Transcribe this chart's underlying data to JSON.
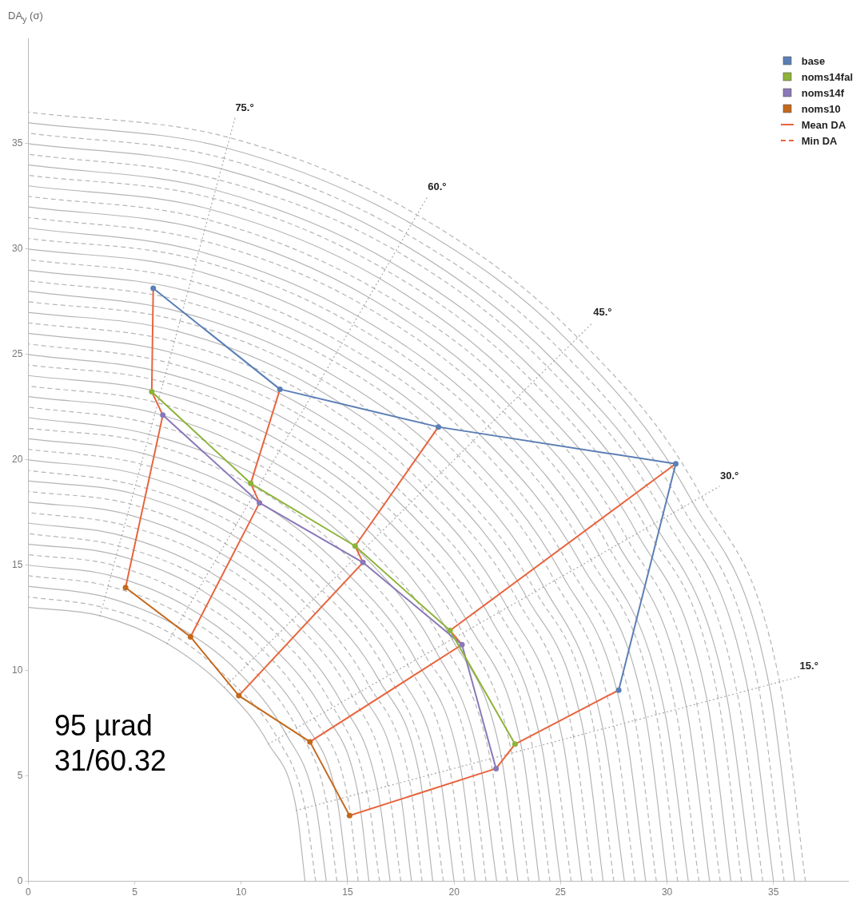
{
  "chart_data": {
    "type": "line",
    "ylabel": "DA$_{y}$ (σ)",
    "xlim": [
      0,
      38.5
    ],
    "ylim": [
      0,
      40
    ],
    "xticks": [
      0,
      5,
      10,
      15,
      20,
      25,
      30,
      35
    ],
    "yticks": [
      0,
      5,
      10,
      15,
      20,
      25,
      30,
      35
    ],
    "grid": false,
    "legend": "top right",
    "marker": "circle",
    "series": [
      {
        "name": "base",
        "color": "#5b7fb5",
        "x": [
          5.87,
          11.82,
          19.26,
          30.41,
          27.73
        ],
        "values": [
          28.14,
          23.35,
          21.56,
          19.81,
          9.07
        ]
      },
      {
        "name": "noms14fal",
        "color": "#8db33a",
        "x": [
          5.8,
          10.45,
          15.35,
          19.81,
          22.86
        ],
        "values": [
          23.23,
          18.88,
          15.91,
          11.9,
          6.51
        ]
      },
      {
        "name": "noms14f",
        "color": "#8a78b8",
        "x": [
          6.32,
          10.86,
          15.72,
          20.37,
          21.97
        ],
        "values": [
          22.12,
          17.96,
          15.13,
          11.23,
          5.35
        ]
      },
      {
        "name": "noms10",
        "color": "#c4691c",
        "x": [
          4.57,
          7.62,
          9.89,
          13.23,
          15.09
        ],
        "values": [
          13.94,
          11.6,
          8.81,
          6.62,
          3.12
        ]
      },
      {
        "name": "Mean DA",
        "color": "#e8643c",
        "marker": "none",
        "x": [
          5.87,
          5.8,
          6.32,
          4.57
        ],
        "values": [
          28.14,
          23.23,
          22.12,
          13.94
        ]
      },
      {
        "color": "#e8643c",
        "marker": "none",
        "x": [
          11.82,
          10.45,
          10.86,
          7.62
        ],
        "values": [
          23.35,
          18.88,
          17.96,
          11.6
        ]
      },
      {
        "color": "#e8643c",
        "marker": "none",
        "x": [
          19.26,
          15.35,
          15.72,
          9.89
        ],
        "values": [
          21.56,
          15.91,
          15.13,
          8.81
        ]
      },
      {
        "color": "#e8643c",
        "marker": "none",
        "x": [
          30.41,
          19.81,
          20.37,
          13.23
        ],
        "values": [
          19.81,
          11.9,
          11.23,
          6.62
        ]
      },
      {
        "color": "#e8643c",
        "marker": "none",
        "x": [
          27.73,
          22.86,
          21.97,
          15.09
        ],
        "values": [
          9.07,
          6.51,
          5.35,
          3.12
        ]
      },
      {
        "name": "Min DA",
        "color": "#e8643c",
        "marker": "none",
        "line_style": "dashed"
      },
      {
        "color": "#a8a8a8",
        "marker": "none",
        "line_style": "dotted",
        "x": [
          12.56,
          36.22
        ],
        "values": [
          3.36,
          9.71
        ]
      },
      {
        "color": "#a8a8a8",
        "marker": "none",
        "line_style": "dotted",
        "x": [
          11.26,
          32.48
        ],
        "values": [
          6.5,
          18.75
        ]
      },
      {
        "color": "#a8a8a8",
        "marker": "none",
        "line_style": "dotted",
        "x": [
          9.19,
          26.52
        ],
        "values": [
          9.19,
          26.52
        ]
      },
      {
        "color": "#a8a8a8",
        "marker": "none",
        "line_style": "dotted",
        "x": [
          6.5,
          18.75
        ],
        "values": [
          11.26,
          32.48
        ]
      },
      {
        "color": "#a8a8a8",
        "marker": "none",
        "line_style": "dotted",
        "x": [
          3.36,
          9.71
        ],
        "values": [
          12.56,
          36.22
        ]
      },
      {
        "color": "#b5b5b5",
        "marker": "none",
        "line_style": "solid",
        "x": [
          13,
          12.6,
          11.3,
          9.2,
          6.5,
          3.4,
          0
        ],
        "values": [
          0,
          3.4,
          6.5,
          9.2,
          11.3,
          12.6,
          13
        ]
      },
      {
        "color": "#b5b5b5",
        "marker": "none",
        "line_style": "dashed",
        "x": [
          13.5,
          13.0,
          11.7,
          9.5,
          6.8,
          3.5,
          0
        ],
        "values": [
          0,
          3.5,
          6.8,
          9.5,
          11.7,
          13.0,
          13.5
        ]
      },
      {
        "color": "#b5b5b5",
        "marker": "none",
        "line_style": "solid",
        "x": [
          14,
          13.5,
          12.1,
          9.9,
          7,
          3.6,
          0
        ],
        "values": [
          0,
          3.6,
          7,
          9.9,
          12.1,
          13.5,
          14
        ]
      },
      {
        "color": "#b5b5b5",
        "marker": "none",
        "line_style": "dashed",
        "x": [
          14.5,
          14.0,
          12.6,
          10.3,
          7.3,
          3.8,
          0
        ],
        "values": [
          0,
          3.8,
          7.3,
          10.3,
          12.6,
          14.0,
          14.5
        ]
      },
      {
        "color": "#b5b5b5",
        "marker": "none",
        "line_style": "solid",
        "x": [
          15,
          14.5,
          13.0,
          10.6,
          7.5,
          3.9,
          0
        ],
        "values": [
          0,
          3.9,
          7.5,
          10.6,
          13.0,
          14.5,
          15
        ]
      },
      {
        "color": "#b5b5b5",
        "marker": "none",
        "line_style": "dashed",
        "x": [
          15.5,
          15.0,
          13.4,
          11.0,
          7.8,
          4.0,
          0
        ],
        "values": [
          0,
          4.0,
          7.8,
          11.0,
          13.4,
          15.0,
          15.5
        ]
      },
      {
        "color": "#b5b5b5",
        "marker": "none",
        "line_style": "solid",
        "x": [
          16,
          15.5,
          13.9,
          11.3,
          8,
          4.1,
          0
        ],
        "values": [
          0,
          4.1,
          8,
          11.3,
          13.9,
          15.5,
          16
        ]
      },
      {
        "color": "#b5b5b5",
        "marker": "none",
        "line_style": "dashed",
        "x": [
          16.5,
          15.9,
          14.3,
          11.7,
          8.3,
          4.3,
          0
        ],
        "values": [
          0,
          4.3,
          8.3,
          11.7,
          14.3,
          15.9,
          16.5
        ]
      },
      {
        "color": "#b5b5b5",
        "marker": "none",
        "line_style": "solid",
        "x": [
          17,
          16.4,
          14.7,
          12.0,
          8.5,
          4.4,
          0
        ],
        "values": [
          0,
          4.4,
          8.5,
          12.0,
          14.7,
          16.4,
          17
        ]
      },
      {
        "color": "#b5b5b5",
        "marker": "none",
        "line_style": "dashed",
        "x": [
          17.5,
          16.9,
          15.2,
          12.4,
          8.8,
          4.5,
          0
        ],
        "values": [
          0,
          4.5,
          8.8,
          12.4,
          15.2,
          16.9,
          17.5
        ]
      },
      {
        "color": "#b5b5b5",
        "marker": "none",
        "line_style": "solid",
        "x": [
          18,
          17.4,
          15.6,
          12.7,
          9,
          4.7,
          0
        ],
        "values": [
          0,
          4.7,
          9,
          12.7,
          15.6,
          17.4,
          18
        ]
      },
      {
        "color": "#b5b5b5",
        "marker": "none",
        "line_style": "dashed",
        "x": [
          18.5,
          17.9,
          16.0,
          13.1,
          9.3,
          4.8,
          0
        ],
        "values": [
          0,
          4.8,
          9.3,
          13.1,
          16.0,
          17.9,
          18.5
        ]
      },
      {
        "color": "#b5b5b5",
        "marker": "none",
        "line_style": "solid",
        "x": [
          19,
          18.4,
          16.5,
          13.4,
          9.5,
          4.9,
          0
        ],
        "values": [
          0,
          4.9,
          9.5,
          13.4,
          16.5,
          18.4,
          19
        ]
      },
      {
        "color": "#b5b5b5",
        "marker": "none",
        "line_style": "dashed",
        "x": [
          19.5,
          18.8,
          16.9,
          13.8,
          9.8,
          5.0,
          0
        ],
        "values": [
          0,
          5.0,
          9.8,
          13.8,
          16.9,
          18.8,
          19.5
        ]
      },
      {
        "color": "#b5b5b5",
        "marker": "none",
        "line_style": "solid",
        "x": [
          20,
          19.3,
          17.3,
          14.1,
          10,
          5.2,
          0
        ],
        "values": [
          0,
          5.2,
          10,
          14.1,
          17.3,
          19.3,
          20
        ]
      },
      {
        "color": "#b5b5b5",
        "marker": "none",
        "line_style": "dashed",
        "x": [
          20.5,
          19.8,
          17.8,
          14.5,
          10.3,
          5.3,
          0
        ],
        "values": [
          0,
          5.3,
          10.3,
          14.5,
          17.8,
          19.8,
          20.5
        ]
      },
      {
        "color": "#b5b5b5",
        "marker": "none",
        "line_style": "solid",
        "x": [
          21,
          20.3,
          18.2,
          14.8,
          10.5,
          5.4,
          0
        ],
        "values": [
          0,
          5.4,
          10.5,
          14.8,
          18.2,
          20.3,
          21
        ]
      },
      {
        "color": "#b5b5b5",
        "marker": "none",
        "line_style": "dashed",
        "x": [
          21.5,
          20.8,
          18.6,
          15.2,
          10.8,
          5.6,
          0
        ],
        "values": [
          0,
          5.6,
          10.8,
          15.2,
          18.6,
          20.8,
          21.5
        ]
      },
      {
        "color": "#b5b5b5",
        "marker": "none",
        "line_style": "solid",
        "x": [
          22,
          21.2,
          19.1,
          15.6,
          11,
          5.7,
          0
        ],
        "values": [
          0,
          5.7,
          11,
          15.6,
          19.1,
          21.2,
          22
        ]
      },
      {
        "color": "#b5b5b5",
        "marker": "none",
        "line_style": "dashed",
        "x": [
          22.5,
          21.7,
          19.5,
          15.9,
          11.3,
          5.8,
          0
        ],
        "values": [
          0,
          5.8,
          11.3,
          15.9,
          19.5,
          21.7,
          22.5
        ]
      },
      {
        "color": "#b5b5b5",
        "marker": "none",
        "line_style": "solid",
        "x": [
          23,
          22.2,
          19.9,
          16.3,
          11.5,
          6.0,
          0
        ],
        "values": [
          0,
          6.0,
          11.5,
          16.3,
          19.9,
          22.2,
          23
        ]
      },
      {
        "color": "#b5b5b5",
        "marker": "none",
        "line_style": "dashed",
        "x": [
          23.5,
          22.7,
          20.4,
          16.6,
          11.8,
          6.1,
          0
        ],
        "values": [
          0,
          6.1,
          11.8,
          16.6,
          20.4,
          22.7,
          23.5
        ]
      },
      {
        "color": "#b5b5b5",
        "marker": "none",
        "line_style": "solid",
        "x": [
          24,
          23.2,
          20.8,
          17.0,
          12,
          6.2,
          0
        ],
        "values": [
          0,
          6.2,
          12,
          17.0,
          20.8,
          23.2,
          24
        ]
      },
      {
        "color": "#b5b5b5",
        "marker": "none",
        "line_style": "dashed",
        "x": [
          24.5,
          23.7,
          21.2,
          17.3,
          12.3,
          6.3,
          0
        ],
        "values": [
          0,
          6.3,
          12.3,
          17.3,
          21.2,
          23.7,
          24.5
        ]
      },
      {
        "color": "#b5b5b5",
        "marker": "none",
        "line_style": "solid",
        "x": [
          25,
          24.1,
          21.7,
          17.7,
          12.5,
          6.5,
          0
        ],
        "values": [
          0,
          6.5,
          12.5,
          17.7,
          21.7,
          24.1,
          25
        ]
      },
      {
        "color": "#b5b5b5",
        "marker": "none",
        "line_style": "dashed",
        "x": [
          25.5,
          24.6,
          22.1,
          18.0,
          12.8,
          6.6,
          0
        ],
        "values": [
          0,
          6.6,
          12.8,
          18.0,
          22.1,
          24.6,
          25.5
        ]
      },
      {
        "color": "#b5b5b5",
        "marker": "none",
        "line_style": "solid",
        "x": [
          26,
          25.1,
          22.5,
          18.4,
          13,
          6.7,
          0
        ],
        "values": [
          0,
          6.7,
          13,
          18.4,
          22.5,
          25.1,
          26
        ]
      },
      {
        "color": "#b5b5b5",
        "marker": "none",
        "line_style": "dashed",
        "x": [
          26.5,
          25.6,
          23.0,
          18.7,
          13.3,
          6.9,
          0
        ],
        "values": [
          0,
          6.9,
          13.3,
          18.7,
          23.0,
          25.6,
          26.5
        ]
      },
      {
        "color": "#b5b5b5",
        "marker": "none",
        "line_style": "solid",
        "x": [
          27,
          26.1,
          23.4,
          19.1,
          13.5,
          7.0,
          0
        ],
        "values": [
          0,
          7.0,
          13.5,
          19.1,
          23.4,
          26.1,
          27
        ]
      },
      {
        "color": "#b5b5b5",
        "marker": "none",
        "line_style": "dashed",
        "x": [
          27.5,
          26.6,
          23.8,
          19.4,
          13.8,
          7.1,
          0
        ],
        "values": [
          0,
          7.1,
          13.8,
          19.4,
          23.8,
          26.6,
          27.5
        ]
      },
      {
        "color": "#b5b5b5",
        "marker": "none",
        "line_style": "solid",
        "x": [
          28,
          27.0,
          24.2,
          19.8,
          14,
          7.2,
          0
        ],
        "values": [
          0,
          7.2,
          14,
          19.8,
          24.2,
          27.0,
          28
        ]
      },
      {
        "color": "#b5b5b5",
        "marker": "none",
        "line_style": "dashed",
        "x": [
          28.5,
          27.5,
          24.7,
          20.2,
          14.3,
          7.4,
          0
        ],
        "values": [
          0,
          7.4,
          14.3,
          20.2,
          24.7,
          27.5,
          28.5
        ]
      },
      {
        "color": "#b5b5b5",
        "marker": "none",
        "line_style": "solid",
        "x": [
          29,
          28.0,
          25.1,
          20.5,
          14.5,
          7.5,
          0
        ],
        "values": [
          0,
          7.5,
          14.5,
          20.5,
          25.1,
          28.0,
          29
        ]
      },
      {
        "color": "#b5b5b5",
        "marker": "none",
        "line_style": "dashed",
        "x": [
          29.5,
          28.5,
          25.5,
          20.9,
          14.8,
          7.6,
          0
        ],
        "values": [
          0,
          7.6,
          14.8,
          20.9,
          25.5,
          28.5,
          29.5
        ]
      },
      {
        "color": "#b5b5b5",
        "marker": "none",
        "line_style": "solid",
        "x": [
          30,
          29.0,
          26.0,
          21.2,
          15,
          7.8,
          0
        ],
        "values": [
          0,
          7.8,
          15,
          21.2,
          26.0,
          29.0,
          30
        ]
      },
      {
        "color": "#b5b5b5",
        "marker": "none",
        "line_style": "dashed",
        "x": [
          30.5,
          29.5,
          26.4,
          21.6,
          15.3,
          7.9,
          0
        ],
        "values": [
          0,
          7.9,
          15.3,
          21.6,
          26.4,
          29.5,
          30.5
        ]
      },
      {
        "color": "#b5b5b5",
        "marker": "none",
        "line_style": "solid",
        "x": [
          31,
          29.9,
          26.8,
          21.9,
          15.5,
          8.0,
          0
        ],
        "values": [
          0,
          8.0,
          15.5,
          21.9,
          26.8,
          29.9,
          31
        ]
      },
      {
        "color": "#b5b5b5",
        "marker": "none",
        "line_style": "dashed",
        "x": [
          31.5,
          30.4,
          27.3,
          22.3,
          15.8,
          8.2,
          0
        ],
        "values": [
          0,
          8.2,
          15.8,
          22.3,
          27.3,
          30.4,
          31.5
        ]
      },
      {
        "color": "#b5b5b5",
        "marker": "none",
        "line_style": "solid",
        "x": [
          32,
          30.9,
          27.7,
          22.6,
          16,
          8.3,
          0
        ],
        "values": [
          0,
          8.3,
          16,
          22.6,
          27.7,
          30.9,
          32
        ]
      },
      {
        "color": "#b5b5b5",
        "marker": "none",
        "line_style": "dashed",
        "x": [
          32.5,
          31.4,
          28.1,
          23.0,
          16.3,
          8.4,
          0
        ],
        "values": [
          0,
          8.4,
          16.3,
          23.0,
          28.1,
          31.4,
          32.5
        ]
      },
      {
        "color": "#b5b5b5",
        "marker": "none",
        "line_style": "solid",
        "x": [
          33,
          31.9,
          28.6,
          23.3,
          16.5,
          8.5,
          0
        ],
        "values": [
          0,
          8.5,
          16.5,
          23.3,
          28.6,
          31.9,
          33
        ]
      },
      {
        "color": "#b5b5b5",
        "marker": "none",
        "line_style": "dashed",
        "x": [
          33.5,
          32.4,
          29.0,
          23.7,
          16.8,
          8.7,
          0
        ],
        "values": [
          0,
          8.7,
          16.8,
          23.7,
          29.0,
          32.4,
          33.5
        ]
      },
      {
        "color": "#b5b5b5",
        "marker": "none",
        "line_style": "solid",
        "x": [
          34,
          32.8,
          29.4,
          24.0,
          17,
          8.8,
          0
        ],
        "values": [
          0,
          8.8,
          17,
          24.0,
          29.4,
          32.8,
          34
        ]
      },
      {
        "color": "#b5b5b5",
        "marker": "none",
        "line_style": "dashed",
        "x": [
          34.5,
          33.3,
          29.9,
          24.4,
          17.3,
          8.9,
          0
        ],
        "values": [
          0,
          8.9,
          17.3,
          24.4,
          29.9,
          33.3,
          34.5
        ]
      },
      {
        "color": "#b5b5b5",
        "marker": "none",
        "line_style": "solid",
        "x": [
          35,
          33.8,
          30.3,
          24.7,
          17.5,
          9.1,
          0
        ],
        "values": [
          0,
          9.1,
          17.5,
          24.7,
          30.3,
          33.8,
          35
        ]
      },
      {
        "color": "#b5b5b5",
        "marker": "none",
        "line_style": "dashed",
        "x": [
          35.5,
          34.3,
          30.7,
          25.1,
          17.8,
          9.2,
          0
        ],
        "values": [
          0,
          9.2,
          17.8,
          25.1,
          30.7,
          34.3,
          35.5
        ]
      },
      {
        "color": "#b5b5b5",
        "marker": "none",
        "line_style": "solid",
        "x": [
          36,
          34.8,
          31.2,
          25.5,
          18,
          9.3,
          0
        ],
        "values": [
          0,
          9.3,
          18,
          25.5,
          31.2,
          34.8,
          36
        ]
      },
      {
        "color": "#b5b5b5",
        "marker": "none",
        "line_style": "dashed",
        "x": [
          36.5,
          35.3,
          31.6,
          25.8,
          18.3,
          9.4,
          0
        ],
        "values": [
          0,
          9.4,
          18.3,
          25.8,
          31.6,
          35.3,
          36.5
        ]
      }
    ],
    "annotations": [
      {
        "text": "75.°",
        "x": 9.71,
        "y": 36.22
      },
      {
        "text": "60.°",
        "x": 18.75,
        "y": 32.48
      },
      {
        "text": "45.°",
        "x": 26.52,
        "y": 26.52
      },
      {
        "text": "30.°",
        "x": 32.48,
        "y": 18.75
      },
      {
        "text": "15.°",
        "x": 36.22,
        "y": 9.71
      },
      "95 µrad",
      "31/60.32"
    ]
  }
}
